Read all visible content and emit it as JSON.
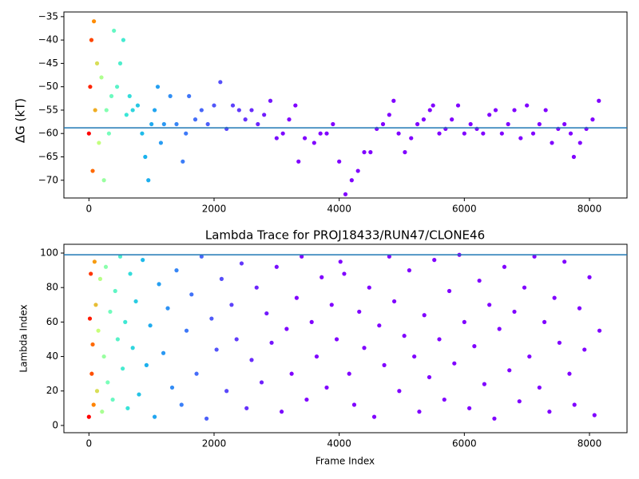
{
  "chart_data": [
    {
      "type": "scatter",
      "ylabel": "ΔG (kT)",
      "x": [
        0,
        20,
        40,
        60,
        80,
        100,
        130,
        160,
        200,
        240,
        280,
        320,
        360,
        400,
        450,
        500,
        550,
        600,
        650,
        700,
        780,
        850,
        900,
        950,
        1000,
        1050,
        1100,
        1150,
        1200,
        1300,
        1400,
        1500,
        1550,
        1600,
        1700,
        1800,
        1900,
        2000,
        2100,
        2200,
        2300,
        2400,
        2500,
        2600,
        2700,
        2800,
        2900,
        3000,
        3100,
        3200,
        3300,
        3350,
        3450,
        3600,
        3700,
        3800,
        3900,
        4000,
        4100,
        4200,
        4300,
        4400,
        4500,
        4600,
        4700,
        4800,
        4870,
        4950,
        5050,
        5150,
        5250,
        5350,
        5450,
        5500,
        5600,
        5700,
        5800,
        5900,
        6000,
        6100,
        6200,
        6300,
        6400,
        6500,
        6600,
        6700,
        6800,
        6900,
        7000,
        7100,
        7200,
        7300,
        7400,
        7500,
        7600,
        7700,
        7750,
        7850,
        7950,
        8050,
        8150
      ],
      "values": [
        -60,
        -50,
        -40,
        -68,
        -36,
        -55,
        -45,
        -62,
        -48,
        -70,
        -55,
        -60,
        -52,
        -38,
        -50,
        -45,
        -40,
        -56,
        -52,
        -55,
        -54,
        -60,
        -65,
        -70,
        -58,
        -55,
        -50,
        -62,
        -58,
        -52,
        -58,
        -66,
        -60,
        -52,
        -57,
        -55,
        -58,
        -54,
        -49,
        -59,
        -54,
        -55,
        -57,
        -55,
        -58,
        -56,
        -53,
        -61,
        -60,
        -57,
        -54,
        -66,
        -61,
        -62,
        -60,
        -60,
        -58,
        -66,
        -73,
        -70,
        -68,
        -64,
        -64,
        -59,
        -58,
        -56,
        -53,
        -60,
        -64,
        -61,
        -58,
        -57,
        -55,
        -54,
        -60,
        -59,
        -57,
        -54,
        -60,
        -58,
        -59,
        -60,
        -56,
        -55,
        -60,
        -58,
        -55,
        -61,
        -54,
        -60,
        -58,
        -55,
        -62,
        -59,
        -58,
        -60,
        -65,
        -62,
        -59,
        -57,
        -53
      ],
      "hline": -58.8,
      "hline_color": "#1f77b4",
      "xlim": [
        -400,
        8600
      ],
      "ylim": [
        -73.8,
        -34
      ],
      "xticks": [
        0,
        2000,
        4000,
        6000,
        8000
      ],
      "yticks": [
        {
          "value": -70,
          "label": "−70"
        },
        {
          "value": -65,
          "label": "−65"
        },
        {
          "value": -60,
          "label": "−60"
        },
        {
          "value": -55,
          "label": "−55"
        },
        {
          "value": -50,
          "label": "−50"
        },
        {
          "value": -45,
          "label": "−45"
        },
        {
          "value": -40,
          "label": "−40"
        },
        {
          "value": -35,
          "label": "−35"
        }
      ],
      "color_stops": [
        [
          0,
          "#ff0000"
        ],
        [
          80,
          "#ff8c00"
        ],
        [
          150,
          "#c8ff7a"
        ],
        [
          300,
          "#7affb9"
        ],
        [
          600,
          "#3ae6d6"
        ],
        [
          900,
          "#1ab2ed"
        ],
        [
          1500,
          "#3b7df8"
        ],
        [
          2200,
          "#5a48fa"
        ],
        [
          3200,
          "#8000ff"
        ]
      ]
    },
    {
      "type": "scatter",
      "title": "Lambda Trace for PROJ18433/RUN47/CLONE46",
      "xlabel": "Frame Index",
      "ylabel": "Lambda Index",
      "x": [
        0,
        15,
        30,
        45,
        60,
        75,
        90,
        110,
        130,
        150,
        180,
        210,
        240,
        270,
        300,
        340,
        380,
        420,
        460,
        500,
        540,
        580,
        620,
        660,
        700,
        750,
        800,
        860,
        920,
        980,
        1050,
        1120,
        1190,
        1260,
        1330,
        1400,
        1480,
        1560,
        1640,
        1720,
        1800,
        1880,
        1960,
        2040,
        2120,
        2200,
        2280,
        2360,
        2440,
        2520,
        2600,
        2680,
        2760,
        2840,
        2920,
        3000,
        3080,
        3160,
        3240,
        3320,
        3400,
        3480,
        3560,
        3640,
        3720,
        3800,
        3880,
        3960,
        4020,
        4080,
        4160,
        4240,
        4320,
        4400,
        4480,
        4560,
        4640,
        4720,
        4800,
        4880,
        4960,
        5040,
        5120,
        5200,
        5280,
        5360,
        5440,
        5520,
        5600,
        5680,
        5760,
        5840,
        5920,
        6000,
        6080,
        6160,
        6240,
        6320,
        6400,
        6480,
        6560,
        6640,
        6720,
        6800,
        6880,
        6960,
        7040,
        7120,
        7200,
        7280,
        7360,
        7440,
        7520,
        7600,
        7680,
        7760,
        7840,
        7920,
        8000,
        8080,
        8160
      ],
      "values": [
        5,
        62,
        88,
        30,
        47,
        12,
        95,
        70,
        20,
        55,
        85,
        8,
        40,
        92,
        25,
        66,
        15,
        78,
        50,
        98,
        33,
        60,
        10,
        88,
        45,
        72,
        18,
        96,
        35,
        58,
        5,
        82,
        42,
        68,
        22,
        90,
        12,
        55,
        76,
        30,
        98,
        4,
        62,
        44,
        85,
        20,
        70,
        50,
        94,
        10,
        38,
        80,
        25,
        65,
        48,
        92,
        8,
        56,
        30,
        74,
        98,
        15,
        60,
        40,
        86,
        22,
        70,
        50,
        95,
        88,
        30,
        12,
        66,
        45,
        80,
        5,
        58,
        35,
        98,
        72,
        20,
        52,
        90,
        40,
        8,
        64,
        28,
        96,
        50,
        15,
        78,
        36,
        99,
        60,
        10,
        46,
        84,
        24,
        70,
        4,
        56,
        92,
        32,
        66,
        14,
        80,
        40,
        98,
        22,
        60,
        8,
        74,
        48,
        95,
        30,
        12,
        68,
        44,
        86,
        6,
        55
      ],
      "hline": 99,
      "hline_color": "#1f77b4",
      "xlim": [
        -400,
        8600
      ],
      "ylim": [
        -4.2,
        105.1
      ],
      "xticks": [
        0,
        2000,
        4000,
        6000,
        8000
      ],
      "yticks": [
        0,
        20,
        40,
        60,
        80,
        100
      ],
      "color_stops": [
        [
          0,
          "#ff0000"
        ],
        [
          80,
          "#ff8c00"
        ],
        [
          150,
          "#c8ff7a"
        ],
        [
          300,
          "#7affb9"
        ],
        [
          600,
          "#3ae6d6"
        ],
        [
          900,
          "#1ab2ed"
        ],
        [
          1500,
          "#3b7df8"
        ],
        [
          2200,
          "#5a48fa"
        ],
        [
          3200,
          "#8000ff"
        ]
      ]
    }
  ]
}
